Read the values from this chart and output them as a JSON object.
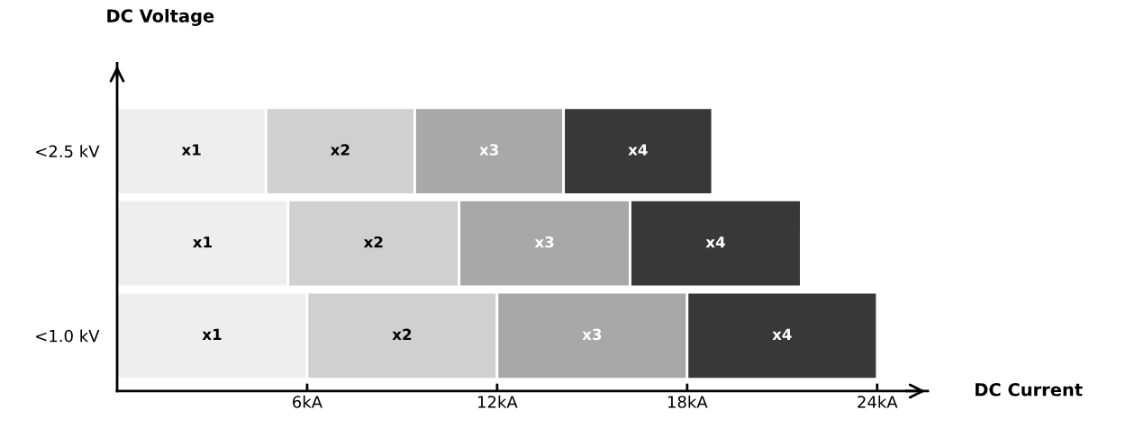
{
  "chart_data": {
    "type": "bar",
    "orientation": "horizontal",
    "stacked": true,
    "xlabel": "DC Current",
    "ylabel": "DC Voltage",
    "categories": [
      "<2.5 kV",
      null,
      "<1.0 kV"
    ],
    "series": [
      {
        "color": "#eeeeee",
        "values": [
          4.7,
          5.4,
          6
        ],
        "value_labels": [
          "x1",
          "x1",
          "x1"
        ]
      },
      {
        "color": "#d0d0d0",
        "values": [
          4.7,
          5.4,
          6
        ],
        "value_labels": [
          "x2",
          "x2",
          "x2"
        ]
      },
      {
        "color": "#a8a8a8",
        "values": [
          4.7,
          5.4,
          6
        ],
        "value_labels": [
          "x3",
          "x3",
          "x3"
        ]
      },
      {
        "color": "#383838",
        "values": [
          4.7,
          5.4,
          6
        ],
        "value_labels": [
          "x4",
          "x4",
          "x4"
        ]
      }
    ],
    "xlim": [
      0,
      25.6
    ],
    "xticks": [
      {
        "value": 6,
        "label": "6kA"
      },
      {
        "value": 12,
        "label": "12kA"
      },
      {
        "value": 18,
        "label": "18kA"
      },
      {
        "value": 24,
        "label": "24kA"
      }
    ],
    "grid": false,
    "legend": false
  }
}
